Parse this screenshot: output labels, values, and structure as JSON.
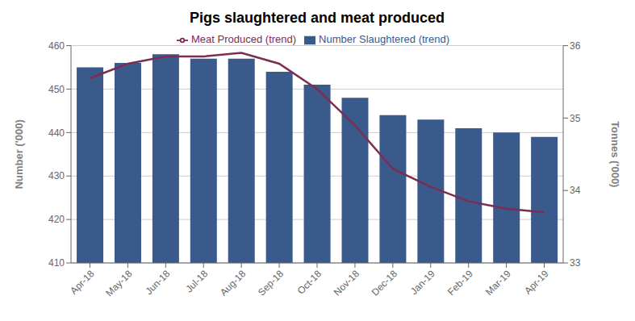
{
  "chart_data": {
    "type": "bar",
    "title": "Pigs slaughtered and meat produced",
    "categories": [
      "Apr-18",
      "May-18",
      "Jun-18",
      "Jul-18",
      "Aug-18",
      "Sep-18",
      "Oct-18",
      "Nov-18",
      "Dec-18",
      "Jan-19",
      "Feb-19",
      "Mar-19",
      "Apr-19"
    ],
    "series": [
      {
        "name": "Number Slaughtered (trend)",
        "type": "bar",
        "color": "#3A5A8C",
        "values": [
          455,
          456,
          458,
          457,
          457,
          454,
          451,
          448,
          444,
          443,
          441,
          440,
          439
        ]
      },
      {
        "name": "Meat Produced (trend)",
        "type": "line",
        "axis": "y2",
        "color": "#7B2D52",
        "values": [
          35.55,
          35.75,
          35.85,
          35.85,
          35.9,
          35.75,
          35.4,
          34.9,
          34.3,
          34.05,
          33.85,
          33.75,
          33.7
        ]
      }
    ],
    "y_label": "Number ('000)",
    "y2_label": "Tonnes ('000)",
    "ylim": [
      410,
      460
    ],
    "yticks": [
      410,
      420,
      430,
      440,
      450,
      460
    ],
    "y2lim": [
      33,
      36
    ],
    "y2ticks": [
      33,
      34,
      35,
      36
    ],
    "grid": true,
    "legend": "top"
  }
}
